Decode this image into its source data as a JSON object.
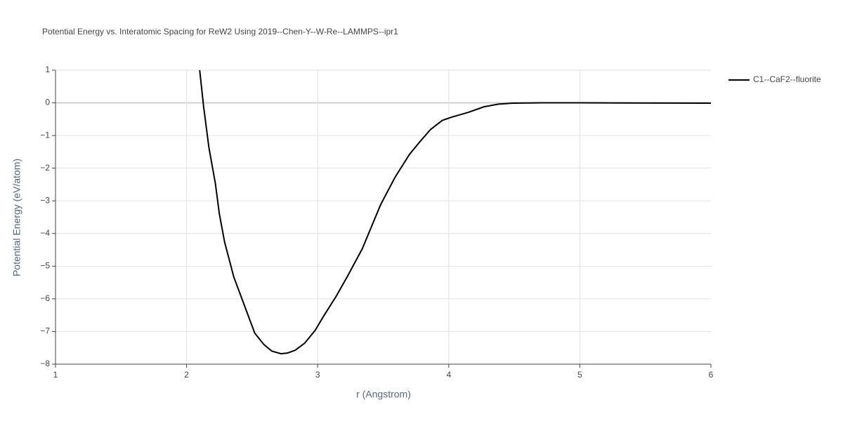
{
  "chart_data": {
    "type": "line",
    "title": "Potential Energy vs. Interatomic Spacing for ReW2 Using 2019--Chen-Y--W-Re--LAMMPS--ipr1",
    "x_label": "r (Angstrom)",
    "y_label": "Potential Energy (eV/atom)",
    "xlim": [
      1,
      6
    ],
    "xticks": [
      1,
      2,
      3,
      4,
      5,
      6
    ],
    "ylim": [
      -8,
      1
    ],
    "yticks": [
      {
        "value": -8,
        "label": "−8"
      },
      {
        "value": -7,
        "label": "−7"
      },
      {
        "value": -6,
        "label": "−6"
      },
      {
        "value": -5,
        "label": "−5"
      },
      {
        "value": -4,
        "label": "−4"
      },
      {
        "value": -3,
        "label": "−3"
      },
      {
        "value": -2,
        "label": "−2"
      },
      {
        "value": -1,
        "label": "−1"
      },
      0,
      1
    ],
    "grid": true,
    "legend": "right",
    "x": [
      2.1,
      2.13,
      2.17,
      2.22,
      2.25,
      2.29,
      2.36,
      2.44,
      2.52,
      2.59,
      2.65,
      2.72,
      2.77,
      2.83,
      2.9,
      2.98,
      3.05,
      3.14,
      3.23,
      3.34,
      3.48,
      3.59,
      3.7,
      3.78,
      3.86,
      3.95,
      4.02,
      4.15,
      4.27,
      4.38,
      4.49,
      4.7,
      5.0,
      6.0
    ],
    "series": [
      {
        "name": "C1--CaF2--fluorite",
        "color": "#000000",
        "values": [
          1.0,
          -0.12,
          -1.36,
          -2.48,
          -3.4,
          -4.26,
          -5.33,
          -6.19,
          -7.05,
          -7.4,
          -7.6,
          -7.68,
          -7.66,
          -7.57,
          -7.36,
          -6.97,
          -6.5,
          -5.93,
          -5.29,
          -4.47,
          -3.12,
          -2.28,
          -1.58,
          -1.19,
          -0.82,
          -0.54,
          -0.44,
          -0.29,
          -0.12,
          -0.04,
          -0.01,
          0,
          0,
          -0.01
        ]
      }
    ]
  }
}
